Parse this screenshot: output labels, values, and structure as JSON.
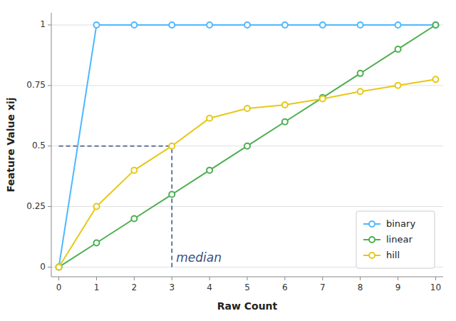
{
  "chart_data": {
    "type": "line",
    "x": [
      0,
      1,
      2,
      3,
      4,
      5,
      6,
      7,
      8,
      9,
      10
    ],
    "series": [
      {
        "name": "binary",
        "color": "#4db8ff",
        "marker": "circle",
        "values": [
          0,
          1,
          1,
          1,
          1,
          1,
          1,
          1,
          1,
          1,
          1
        ]
      },
      {
        "name": "linear",
        "color": "#4caf50",
        "marker": "circle",
        "values": [
          0,
          0.1,
          0.2,
          0.3,
          0.4,
          0.5,
          0.6,
          0.7,
          0.8,
          0.9,
          1.0
        ]
      },
      {
        "name": "hill",
        "color": "#e6c818",
        "marker": "circle",
        "values": [
          0,
          0.25,
          0.4,
          0.5,
          0.615,
          0.655,
          0.67,
          0.695,
          0.725,
          0.75,
          0.775
        ]
      }
    ],
    "x_label": "Raw Count",
    "y_label": "Feature Value xij",
    "xlim": [
      -0.2,
      10.2
    ],
    "ylim": [
      -0.04,
      1.05
    ],
    "xticks": [
      0,
      1,
      2,
      3,
      4,
      5,
      6,
      7,
      8,
      9,
      10
    ],
    "yticks": [
      0,
      0.25,
      0.5,
      0.75,
      1
    ],
    "annotations": [
      {
        "text": "median",
        "x": 3,
        "y": 0.5,
        "color": "#3a5080",
        "line_style": "dashed"
      }
    ],
    "grid": "y",
    "legend": "lower right"
  }
}
